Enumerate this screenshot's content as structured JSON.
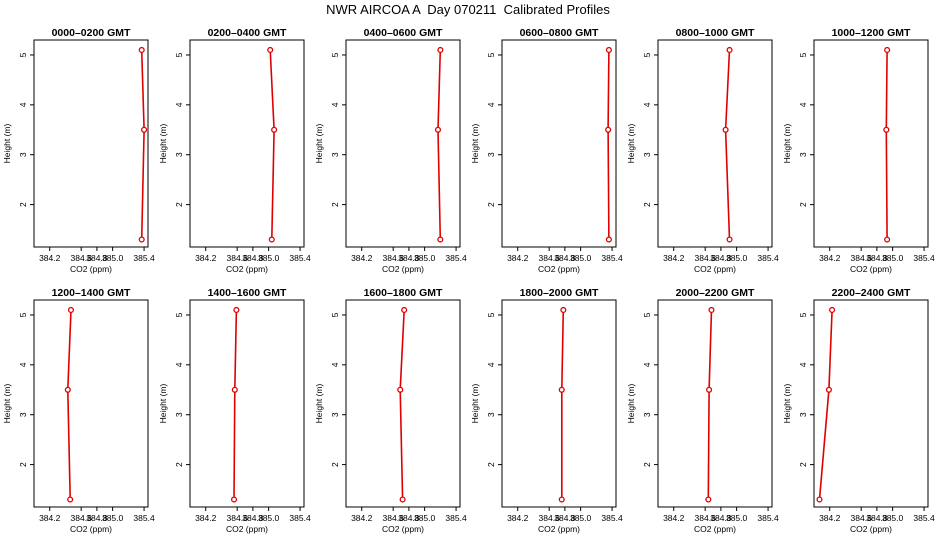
{
  "title": "NWR AIRCOA A  Day 070211  Calibrated Profiles",
  "colors": {
    "line": "#e00000",
    "marker": "#e00000",
    "axis": "#000000"
  },
  "chart_data": [
    {
      "type": "line",
      "title": "0000–0200 GMT",
      "xlabel": "CO2 (ppm)",
      "ylabel": "Height (m)",
      "xlim": [
        384.0,
        385.45
      ],
      "ylim": [
        1.15,
        5.3
      ],
      "xticks": [
        "384.2",
        "384.6",
        "384.8",
        "385.0",
        "385.4"
      ],
      "xtick_values": [
        384.2,
        384.6,
        384.8,
        385.0,
        385.4
      ],
      "yticks": [
        "2",
        "3",
        "4",
        "5"
      ],
      "grid": false,
      "series": [
        {
          "x": [
            385.37,
            385.4,
            385.37
          ],
          "y": [
            1.3,
            3.5,
            5.1
          ]
        }
      ]
    },
    {
      "type": "line",
      "title": "0200–0400 GMT",
      "xlabel": "CO2 (ppm)",
      "ylabel": "Height (m)",
      "xlim": [
        384.0,
        385.45
      ],
      "ylim": [
        1.15,
        5.3
      ],
      "xticks": [
        "384.2",
        "384.6",
        "384.8",
        "385.0",
        "385.4"
      ],
      "xtick_values": [
        384.2,
        384.6,
        384.8,
        385.0,
        385.4
      ],
      "yticks": [
        "2",
        "3",
        "4",
        "5"
      ],
      "grid": false,
      "series": [
        {
          "x": [
            385.04,
            385.07,
            385.02
          ],
          "y": [
            1.3,
            3.5,
            5.1
          ]
        }
      ]
    },
    {
      "type": "line",
      "title": "0400–0600 GMT",
      "xlabel": "CO2 (ppm)",
      "ylabel": "Height (m)",
      "xlim": [
        384.0,
        385.45
      ],
      "ylim": [
        1.15,
        5.3
      ],
      "xticks": [
        "384.2",
        "384.6",
        "384.8",
        "385.0",
        "385.4"
      ],
      "xtick_values": [
        384.2,
        384.6,
        384.8,
        385.0,
        385.4
      ],
      "yticks": [
        "2",
        "3",
        "4",
        "5"
      ],
      "grid": false,
      "series": [
        {
          "x": [
            385.2,
            385.17,
            385.2
          ],
          "y": [
            1.3,
            3.5,
            5.1
          ]
        }
      ]
    },
    {
      "type": "line",
      "title": "0600–0800 GMT",
      "xlabel": "CO2 (ppm)",
      "ylabel": "Height (m)",
      "xlim": [
        384.0,
        385.45
      ],
      "ylim": [
        1.15,
        5.3
      ],
      "xticks": [
        "384.2",
        "384.6",
        "384.8",
        "385.0",
        "385.4"
      ],
      "xtick_values": [
        384.2,
        384.6,
        384.8,
        385.0,
        385.4
      ],
      "yticks": [
        "2",
        "3",
        "4",
        "5"
      ],
      "grid": false,
      "series": [
        {
          "x": [
            385.36,
            385.35,
            385.36
          ],
          "y": [
            1.3,
            3.5,
            5.1
          ]
        }
      ]
    },
    {
      "type": "line",
      "title": "0800–1000 GMT",
      "xlabel": "CO2 (ppm)",
      "ylabel": "Height (m)",
      "xlim": [
        384.0,
        385.45
      ],
      "ylim": [
        1.15,
        5.3
      ],
      "xticks": [
        "384.2",
        "384.6",
        "384.8",
        "385.0",
        "385.4"
      ],
      "xtick_values": [
        384.2,
        384.6,
        384.8,
        385.0,
        385.4
      ],
      "yticks": [
        "2",
        "3",
        "4",
        "5"
      ],
      "grid": false,
      "series": [
        {
          "x": [
            384.91,
            384.86,
            384.91
          ],
          "y": [
            1.3,
            3.5,
            5.1
          ]
        }
      ]
    },
    {
      "type": "line",
      "title": "1000–1200 GMT",
      "xlabel": "CO2 (ppm)",
      "ylabel": "Height (m)",
      "xlim": [
        384.0,
        385.45
      ],
      "ylim": [
        1.15,
        5.3
      ],
      "xticks": [
        "384.2",
        "384.6",
        "384.8",
        "385.0",
        "385.4"
      ],
      "xtick_values": [
        384.2,
        384.6,
        384.8,
        385.0,
        385.4
      ],
      "yticks": [
        "2",
        "3",
        "4",
        "5"
      ],
      "grid": false,
      "series": [
        {
          "x": [
            384.93,
            384.92,
            384.93
          ],
          "y": [
            1.3,
            3.5,
            5.1
          ]
        }
      ]
    },
    {
      "type": "line",
      "title": "1200–1400 GMT",
      "xlabel": "CO2 (ppm)",
      "ylabel": "Height (m)",
      "xlim": [
        384.0,
        385.45
      ],
      "ylim": [
        1.15,
        5.3
      ],
      "xticks": [
        "384.2",
        "384.6",
        "384.8",
        "385.0",
        "385.4"
      ],
      "xtick_values": [
        384.2,
        384.6,
        384.8,
        385.0,
        385.4
      ],
      "yticks": [
        "2",
        "3",
        "4",
        "5"
      ],
      "grid": false,
      "series": [
        {
          "x": [
            384.46,
            384.43,
            384.47
          ],
          "y": [
            1.3,
            3.5,
            5.1
          ]
        }
      ]
    },
    {
      "type": "line",
      "title": "1400–1600 GMT",
      "xlabel": "CO2 (ppm)",
      "ylabel": "Height (m)",
      "xlim": [
        384.0,
        385.45
      ],
      "ylim": [
        1.15,
        5.3
      ],
      "xticks": [
        "384.2",
        "384.6",
        "384.8",
        "385.0",
        "385.4"
      ],
      "xtick_values": [
        384.2,
        384.6,
        384.8,
        385.0,
        385.4
      ],
      "yticks": [
        "2",
        "3",
        "4",
        "5"
      ],
      "grid": false,
      "series": [
        {
          "x": [
            384.56,
            384.57,
            384.59
          ],
          "y": [
            1.3,
            3.5,
            5.1
          ]
        }
      ]
    },
    {
      "type": "line",
      "title": "1600–1800 GMT",
      "xlabel": "CO2 (ppm)",
      "ylabel": "Height (m)",
      "xlim": [
        384.0,
        385.45
      ],
      "ylim": [
        1.15,
        5.3
      ],
      "xticks": [
        "384.2",
        "384.6",
        "384.8",
        "385.0",
        "385.4"
      ],
      "xtick_values": [
        384.2,
        384.6,
        384.8,
        385.0,
        385.4
      ],
      "yticks": [
        "2",
        "3",
        "4",
        "5"
      ],
      "grid": false,
      "series": [
        {
          "x": [
            384.72,
            384.69,
            384.74
          ],
          "y": [
            1.3,
            3.5,
            5.1
          ]
        }
      ]
    },
    {
      "type": "line",
      "title": "1800–2000 GMT",
      "xlabel": "CO2 (ppm)",
      "ylabel": "Height (m)",
      "xlim": [
        384.0,
        385.45
      ],
      "ylim": [
        1.15,
        5.3
      ],
      "xticks": [
        "384.2",
        "384.6",
        "384.8",
        "385.0",
        "385.4"
      ],
      "xtick_values": [
        384.2,
        384.6,
        384.8,
        385.0,
        385.4
      ],
      "yticks": [
        "2",
        "3",
        "4",
        "5"
      ],
      "grid": false,
      "series": [
        {
          "x": [
            384.76,
            384.76,
            384.78
          ],
          "y": [
            1.3,
            3.5,
            5.1
          ]
        }
      ]
    },
    {
      "type": "line",
      "title": "2000–2200 GMT",
      "xlabel": "CO2 (ppm)",
      "ylabel": "Height (m)",
      "xlim": [
        384.0,
        385.45
      ],
      "ylim": [
        1.15,
        5.3
      ],
      "xticks": [
        "384.2",
        "384.6",
        "384.8",
        "385.0",
        "385.4"
      ],
      "xtick_values": [
        384.2,
        384.6,
        384.8,
        385.0,
        385.4
      ],
      "yticks": [
        "2",
        "3",
        "4",
        "5"
      ],
      "grid": false,
      "series": [
        {
          "x": [
            384.64,
            384.65,
            384.68
          ],
          "y": [
            1.3,
            3.5,
            5.1
          ]
        }
      ]
    },
    {
      "type": "line",
      "title": "2200–2400 GMT",
      "xlabel": "CO2 (ppm)",
      "ylabel": "Height (m)",
      "xlim": [
        384.0,
        385.45
      ],
      "ylim": [
        1.15,
        5.3
      ],
      "xticks": [
        "384.2",
        "384.6",
        "384.8",
        "385.0",
        "385.4"
      ],
      "xtick_values": [
        384.2,
        384.6,
        384.8,
        385.0,
        385.4
      ],
      "yticks": [
        "2",
        "3",
        "4",
        "5"
      ],
      "grid": false,
      "series": [
        {
          "x": [
            384.07,
            384.19,
            384.23
          ],
          "y": [
            1.3,
            3.5,
            5.1
          ]
        }
      ]
    }
  ]
}
